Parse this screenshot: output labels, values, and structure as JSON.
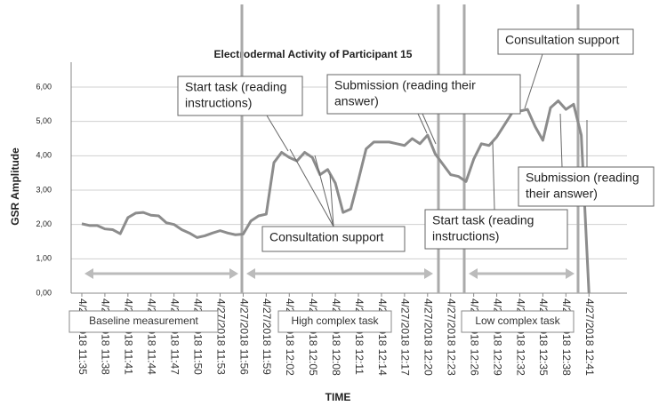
{
  "chart_data": {
    "type": "line",
    "title": "Electrodermal Activity of Participant 15",
    "y_label": "GSR Amplitude",
    "x_label": "TIME",
    "categories": [
      "4/27/2018 11:35",
      null,
      null,
      "4/27/2018 11:38",
      null,
      null,
      "4/27/2018 11:41",
      null,
      null,
      "4/27/2018 11:44",
      null,
      null,
      "4/27/2018 11:47",
      null,
      null,
      "4/27/2018 11:50",
      null,
      null,
      "4/27/2018 11:53",
      null,
      null,
      "4/27/2018 11:56",
      null,
      null,
      "4/27/2018 11:59",
      null,
      null,
      "4/27/2018 12:02",
      null,
      null,
      "4/27/2018 12:05",
      null,
      null,
      "4/27/2018 12:08",
      null,
      null,
      "4/27/2018 12:11",
      null,
      null,
      "4/27/2018 12:14",
      null,
      null,
      "4/27/2018 12:17",
      null,
      null,
      "4/27/2018 12:20",
      null,
      null,
      "4/27/2018 12:23",
      null,
      null,
      "4/27/2018 12:26",
      null,
      null,
      "4/27/2018 12:29",
      null,
      null,
      "4/27/2018 12:32",
      null,
      null,
      "4/27/2018 12:35",
      null,
      null,
      "4/27/2018 12:38",
      null,
      null,
      "4/27/2018 12:41"
    ],
    "series": [
      {
        "name": "GSR Amplitude",
        "color": "#8c8c8c",
        "values": [
          2.02,
          1.97,
          1.97,
          1.87,
          1.85,
          1.73,
          2.2,
          2.33,
          2.35,
          2.27,
          2.25,
          2.05,
          2.0,
          1.85,
          1.75,
          1.62,
          1.67,
          1.75,
          1.82,
          1.75,
          1.7,
          1.72,
          2.1,
          2.25,
          2.3,
          3.8,
          4.1,
          3.95,
          3.85,
          4.1,
          3.95,
          3.45,
          3.6,
          3.2,
          2.35,
          2.45,
          3.3,
          4.2,
          4.4,
          4.4,
          4.4,
          4.35,
          4.3,
          4.5,
          4.35,
          4.6,
          4.05,
          3.75,
          3.45,
          3.4,
          3.25,
          3.9,
          4.35,
          4.3,
          4.55,
          4.9,
          5.25,
          5.3,
          5.35,
          4.85,
          4.45,
          5.4,
          5.6,
          5.35,
          5.5,
          4.6,
          0.0
        ]
      }
    ],
    "ylim": [
      0,
      6
    ],
    "yticks": [
      {
        "value": 0,
        "label": "0,00"
      },
      {
        "value": 1,
        "label": "1,00"
      },
      {
        "value": 2,
        "label": "2,00"
      },
      {
        "value": 3,
        "label": "3,00"
      },
      {
        "value": 4,
        "label": "4,00"
      },
      {
        "value": 5,
        "label": "5,00"
      },
      {
        "value": 6,
        "label": "6,00"
      }
    ],
    "grid": true,
    "phases": [
      "Baseline measurement",
      "High complex task",
      "Low complex task"
    ],
    "annotations": [
      {
        "lines": [
          "Start task (reading",
          "instructions)"
        ]
      },
      {
        "lines": [
          "Submission (reading their",
          "answer)"
        ]
      },
      {
        "lines": [
          "Consultation support"
        ]
      },
      {
        "lines": [
          "Consultation support"
        ]
      },
      {
        "lines": [
          "Start task (reading",
          "instructions)"
        ]
      },
      {
        "lines": [
          "Submission (reading",
          "their answer)"
        ]
      }
    ]
  }
}
